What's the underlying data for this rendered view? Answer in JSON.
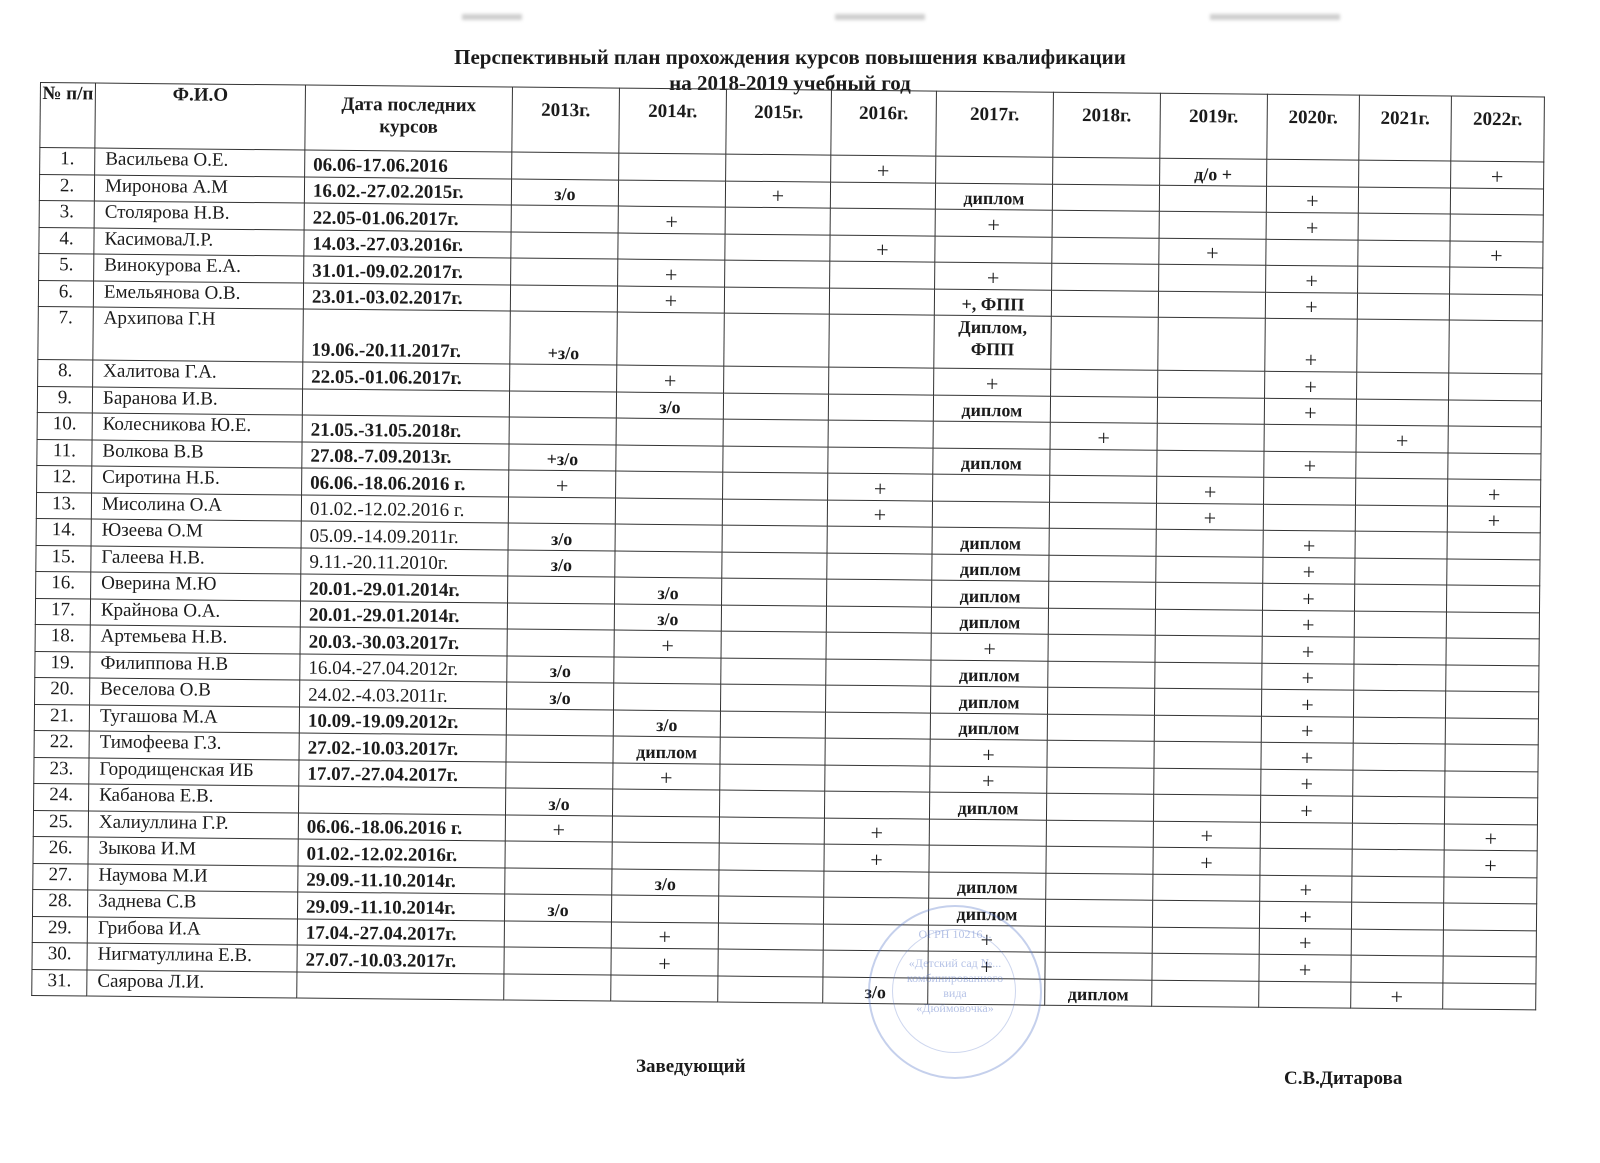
{
  "title_line1": "Перспективный план прохождения курсов повышения квалификации",
  "title_line2": "на 2018-2019  учебный год",
  "headers": [
    "№ п/п",
    "Ф.И.О",
    "Дата последних курсов",
    "2013г.",
    "2014г.",
    "2015г.",
    "2016г.",
    "2017г.",
    "2018г.",
    "2019г.",
    "2020г.",
    "2021г.",
    "2022г."
  ],
  "rows": [
    {
      "num": "1.",
      "name": "Васильева О.Е.",
      "date": "06.06-17.06.2016",
      "bold": true,
      "y": {
        "2016": "+",
        "2019": "д/о +",
        "2022": "+"
      }
    },
    {
      "num": "2.",
      "name": "Миронова А.М",
      "date": "16.02.-27.02.2015г.",
      "bold": true,
      "y": {
        "2013": "з/о",
        "2015": "+",
        "2017": "диплом",
        "2020": "+"
      }
    },
    {
      "num": "3.",
      "name": "Столярова Н.В.",
      "date": "22.05-01.06.2017г.",
      "bold": true,
      "y": {
        "2014": "+",
        "2017": "+",
        "2020": "+"
      }
    },
    {
      "num": "4.",
      "name": "КасимоваЛ.Р.",
      "date": "14.03.-27.03.2016г.",
      "bold": true,
      "y": {
        "2016": "+",
        "2019": "+",
        "2022": "+"
      }
    },
    {
      "num": "5.",
      "name": "Винокурова Е.А.",
      "date": "31.01.-09.02.2017г.",
      "bold": true,
      "y": {
        "2014": "+",
        "2017": "+",
        "2020": "+"
      }
    },
    {
      "num": "6.",
      "name": "Емельянова О.В.",
      "date": "23.01.-03.02.2017г.",
      "bold": true,
      "y": {
        "2014": "+",
        "2017": "+, ФПП",
        "2020": "+"
      }
    },
    {
      "num": "7.",
      "name": "Архипова Г.Н",
      "date": "19.06.-20.11.2017г.",
      "bold": true,
      "tall": true,
      "y": {
        "2013": "+з/о",
        "2017": "Диплом, ФПП",
        "2020": "+"
      }
    },
    {
      "num": "8.",
      "name": "Халитова Г.А.",
      "date": "22.05.-01.06.2017г.",
      "bold": true,
      "y": {
        "2014": "+",
        "2017": "+",
        "2020": "+"
      }
    },
    {
      "num": "9.",
      "name": "Баранова И.В.",
      "date": "",
      "bold": true,
      "y": {
        "2014": "з/о",
        "2017": "диплом",
        "2020": "+"
      }
    },
    {
      "num": "10.",
      "name": "Колесникова Ю.Е.",
      "date": "21.05.-31.05.2018г.",
      "bold": true,
      "y": {
        "2018": "+",
        "2021": "+"
      }
    },
    {
      "num": "11.",
      "name": "Волкова В.В",
      "date": "27.08.-7.09.2013г.",
      "bold": true,
      "y": {
        "2013": "+з/о",
        "2017": "диплом",
        "2020": "+"
      }
    },
    {
      "num": "12.",
      "name": "Сиротина Н.Б.",
      "date": "06.06.-18.06.2016 г.",
      "bold": true,
      "y": {
        "2013": "+",
        "2016": "+",
        "2019": "+",
        "2022": "+"
      }
    },
    {
      "num": "13.",
      "name": "Мисолина О.А",
      "date": "01.02.-12.02.2016 г.",
      "bold": false,
      "y": {
        "2016": "+",
        "2019": "+",
        "2022": "+"
      }
    },
    {
      "num": "14.",
      "name": "Юзеева О.М",
      "date": "05.09.-14.09.2011г.",
      "bold": false,
      "y": {
        "2013": "з/о",
        "2017": "диплом",
        "2020": "+"
      }
    },
    {
      "num": "15.",
      "name": "Галеева Н.В.",
      "date": "9.11.-20.11.2010г.",
      "bold": false,
      "y": {
        "2013": "з/о",
        "2017": "диплом",
        "2020": "+"
      }
    },
    {
      "num": "16.",
      "name": "Оверина М.Ю",
      "date": "20.01.-29.01.2014г.",
      "bold": true,
      "y": {
        "2014": "з/о",
        "2017": "диплом",
        "2020": "+"
      }
    },
    {
      "num": "17.",
      "name": "Крайнова О.А.",
      "date": "20.01.-29.01.2014г.",
      "bold": true,
      "y": {
        "2014": "з/о",
        "2017": "диплом",
        "2020": "+"
      }
    },
    {
      "num": "18.",
      "name": "Артемьева Н.В.",
      "date": "20.03.-30.03.2017г.",
      "bold": true,
      "y": {
        "2014": "+",
        "2017": "+",
        "2020": "+"
      }
    },
    {
      "num": "19.",
      "name": "Филиппова Н.В",
      "date": "16.04.-27.04.2012г.",
      "bold": false,
      "y": {
        "2013": "з/о",
        "2017": "диплом",
        "2020": "+"
      }
    },
    {
      "num": "20.",
      "name": "Веселова О.В",
      "date": "24.02.-4.03.2011г.",
      "bold": false,
      "y": {
        "2013": "з/о",
        "2017": "диплом",
        "2020": "+"
      }
    },
    {
      "num": "21.",
      "name": "Тугашова М.А",
      "date": "10.09.-19.09.2012г.",
      "bold": true,
      "y": {
        "2014": "з/о",
        "2017": "диплом",
        "2020": "+"
      }
    },
    {
      "num": "22.",
      "name": "Тимофеева Г.З.",
      "date": "27.02.-10.03.2017г.",
      "bold": true,
      "y": {
        "2014": "диплом",
        "2017": "+",
        "2020": "+"
      }
    },
    {
      "num": "23.",
      "name": "Городищенская ИБ",
      "date": "17.07.-27.04.2017г.",
      "bold": true,
      "y": {
        "2014": "+",
        "2017": "+",
        "2020": "+"
      }
    },
    {
      "num": "24.",
      "name": "Кабанова Е.В.",
      "date": "",
      "bold": true,
      "y": {
        "2013": "з/о",
        "2017": "диплом",
        "2020": "+"
      }
    },
    {
      "num": "25.",
      "name": "Халиуллина Г.Р.",
      "date": "06.06.-18.06.2016 г.",
      "bold": true,
      "y": {
        "2013": "+",
        "2016": "+",
        "2019": "+",
        "2022": "+"
      }
    },
    {
      "num": "26.",
      "name": "Зыкова И.М",
      "date": "01.02.-12.02.2016г.",
      "bold": true,
      "y": {
        "2016": "+",
        "2019": "+",
        "2022": "+"
      }
    },
    {
      "num": "27.",
      "name": "Наумова М.И",
      "date": "29.09.-11.10.2014г.",
      "bold": true,
      "y": {
        "2014": "з/о",
        "2017": "диплом",
        "2020": "+"
      }
    },
    {
      "num": "28.",
      "name": "Заднева С.В",
      "date": "29.09.-11.10.2014г.",
      "bold": true,
      "y": {
        "2013": "з/о",
        "2017": "диплом",
        "2020": "+"
      }
    },
    {
      "num": "29.",
      "name": "Грибова И.А",
      "date": "17.04.-27.04.2017г.",
      "bold": true,
      "y": {
        "2014": "+",
        "2017": "+",
        "2020": "+"
      }
    },
    {
      "num": "30.",
      "name": "Нигматуллина Е.В.",
      "date": "27.07.-10.03.2017г.",
      "bold": true,
      "y": {
        "2014": "+",
        "2017": "+",
        "2020": "+"
      }
    },
    {
      "num": "31.",
      "name": "Саярова Л.И.",
      "date": "",
      "bold": true,
      "y": {
        "2016": "з/о",
        "2018": "диплом",
        "2021": "+"
      }
    }
  ],
  "years": [
    "2013",
    "2014",
    "2015",
    "2016",
    "2017",
    "2018",
    "2019",
    "2020",
    "2021",
    "2022"
  ],
  "footer": {
    "position": "Заведующий",
    "signatory": "С.В.Дитарова"
  },
  "stamp": {
    "line1": "ОГРН 10216...",
    "line2": "«Детский сад №...",
    "line3": "комбинированного",
    "line4": "вида",
    "line5": "«Дюймовочка»"
  },
  "colors": {
    "ink": "#1b1b1b",
    "stamp": "#5a78c8"
  }
}
